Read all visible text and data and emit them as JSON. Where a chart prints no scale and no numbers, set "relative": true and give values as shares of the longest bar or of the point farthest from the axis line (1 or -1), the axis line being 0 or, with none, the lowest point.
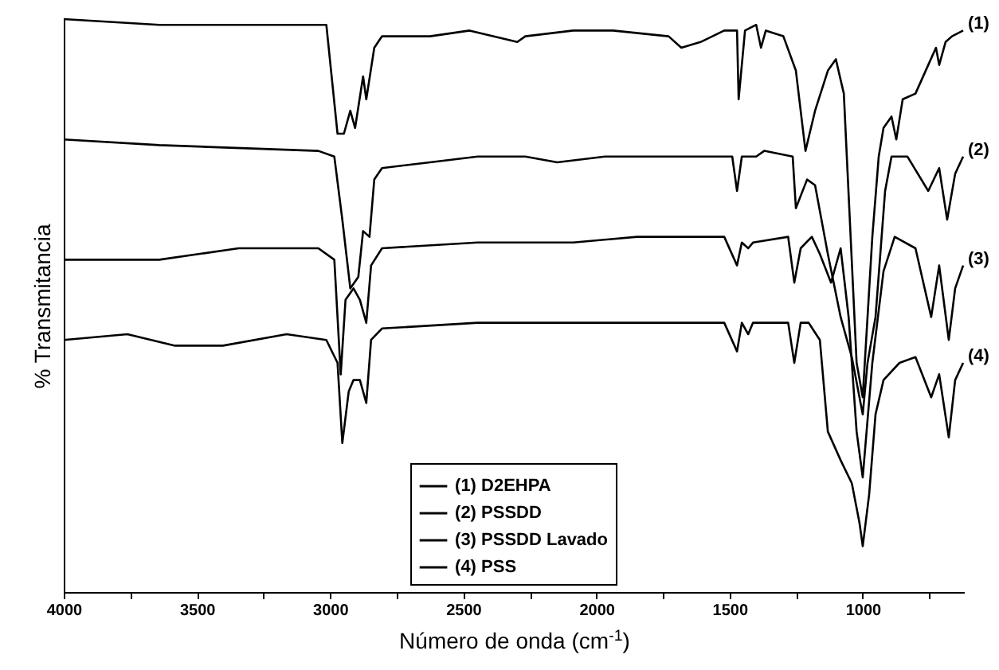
{
  "chart_data": {
    "type": "line",
    "xlabel": "Número de onda (cm$^{-1}$)",
    "ylabel": "% Transmitancia",
    "relative": true,
    "legend": "bottom",
    "grid": false,
    "marker": "none",
    "line_style": "solid",
    "xlim": [
      4000,
      620
    ],
    "xticks": [
      4000,
      {
        "value": 3750,
        "label": null
      },
      3500,
      {
        "value": 3250,
        "label": null
      },
      3000,
      {
        "value": 2750,
        "label": null
      },
      2500,
      {
        "value": 2250,
        "label": null
      },
      2000,
      {
        "value": 1750,
        "label": null
      },
      1500,
      {
        "value": 1250,
        "label": null
      },
      1000,
      {
        "value": 750,
        "label": null
      }
    ],
    "annotations": [
      "(1)",
      "(2)",
      "(3)",
      "(4)"
    ],
    "series": [
      {
        "name": "(1) D2EHPA",
        "color": "#000000",
        "x": [
          4000,
          3641,
          3014,
          2972,
          2948,
          2924,
          2906,
          2876,
          2864,
          2834,
          2805,
          2625,
          2476,
          2297,
          2267,
          2087,
          1938,
          1729,
          1681,
          1609,
          1520,
          1472,
          1466,
          1442,
          1400,
          1382,
          1364,
          1298,
          1251,
          1215,
          1179,
          1131,
          1101,
          1071,
          1023,
          1000,
          964,
          940,
          922,
          892,
          874,
          850,
          802,
          754,
          725,
          713,
          689,
          665,
          623
        ],
        "values": [
          1.0,
          0.99,
          0.99,
          0.8,
          0.8,
          0.84,
          0.81,
          0.9,
          0.86,
          0.95,
          0.97,
          0.97,
          0.98,
          0.96,
          0.97,
          0.98,
          0.98,
          0.97,
          0.95,
          0.96,
          0.98,
          0.98,
          0.86,
          0.98,
          0.99,
          0.95,
          0.98,
          0.97,
          0.91,
          0.77,
          0.84,
          0.91,
          0.93,
          0.87,
          0.4,
          0.34,
          0.62,
          0.76,
          0.81,
          0.83,
          0.79,
          0.86,
          0.87,
          0.92,
          0.95,
          0.92,
          0.96,
          0.97,
          0.98
        ]
      },
      {
        "name": "(2) PSSDD",
        "color": "#000000",
        "x": [
          4000,
          3641,
          3044,
          2984,
          2954,
          2924,
          2894,
          2876,
          2852,
          2834,
          2805,
          2625,
          2446,
          2267,
          2147,
          1968,
          1729,
          1490,
          1472,
          1454,
          1400,
          1370,
          1263,
          1251,
          1209,
          1179,
          1131,
          1083,
          1041,
          1000,
          982,
          952,
          916,
          892,
          832,
          754,
          713,
          683,
          653,
          623
        ],
        "values": [
          0.79,
          0.78,
          0.77,
          0.76,
          0.65,
          0.53,
          0.55,
          0.63,
          0.62,
          0.72,
          0.74,
          0.75,
          0.76,
          0.76,
          0.75,
          0.76,
          0.76,
          0.76,
          0.7,
          0.76,
          0.76,
          0.77,
          0.76,
          0.67,
          0.72,
          0.71,
          0.59,
          0.48,
          0.41,
          0.31,
          0.4,
          0.48,
          0.7,
          0.76,
          0.76,
          0.7,
          0.74,
          0.65,
          0.73,
          0.76
        ]
      },
      {
        "name": "(3) PSSDD Lavado",
        "color": "#000000",
        "x": [
          4000,
          3641,
          3343,
          3044,
          2984,
          2960,
          2942,
          2912,
          2888,
          2864,
          2846,
          2805,
          2446,
          2326,
          2087,
          1848,
          1520,
          1472,
          1454,
          1430,
          1412,
          1280,
          1257,
          1233,
          1191,
          1161,
          1119,
          1083,
          1053,
          1023,
          1000,
          964,
          922,
          880,
          802,
          743,
          713,
          677,
          653,
          623
        ],
        "values": [
          0.58,
          0.58,
          0.6,
          0.6,
          0.58,
          0.38,
          0.51,
          0.53,
          0.51,
          0.47,
          0.57,
          0.6,
          0.61,
          0.61,
          0.61,
          0.62,
          0.62,
          0.57,
          0.61,
          0.6,
          0.61,
          0.62,
          0.54,
          0.6,
          0.62,
          0.59,
          0.54,
          0.6,
          0.48,
          0.28,
          0.2,
          0.4,
          0.56,
          0.62,
          0.6,
          0.48,
          0.57,
          0.44,
          0.53,
          0.57
        ]
      },
      {
        "name": "(4) PSS",
        "color": "#000000",
        "x": [
          4000,
          3761,
          3582,
          3402,
          3163,
          3014,
          2972,
          2954,
          2930,
          2912,
          2888,
          2864,
          2846,
          2805,
          2446,
          2147,
          1848,
          1520,
          1472,
          1454,
          1430,
          1412,
          1280,
          1257,
          1233,
          1203,
          1161,
          1131,
          1083,
          1041,
          1012,
          1000,
          976,
          952,
          922,
          862,
          802,
          743,
          713,
          677,
          653,
          623
        ],
        "values": [
          0.44,
          0.45,
          0.43,
          0.43,
          0.45,
          0.44,
          0.4,
          0.26,
          0.35,
          0.37,
          0.37,
          0.33,
          0.44,
          0.46,
          0.47,
          0.47,
          0.47,
          0.47,
          0.42,
          0.47,
          0.45,
          0.47,
          0.47,
          0.4,
          0.47,
          0.47,
          0.44,
          0.28,
          0.23,
          0.19,
          0.12,
          0.08,
          0.17,
          0.31,
          0.37,
          0.4,
          0.41,
          0.34,
          0.38,
          0.27,
          0.37,
          0.4
        ]
      }
    ]
  }
}
